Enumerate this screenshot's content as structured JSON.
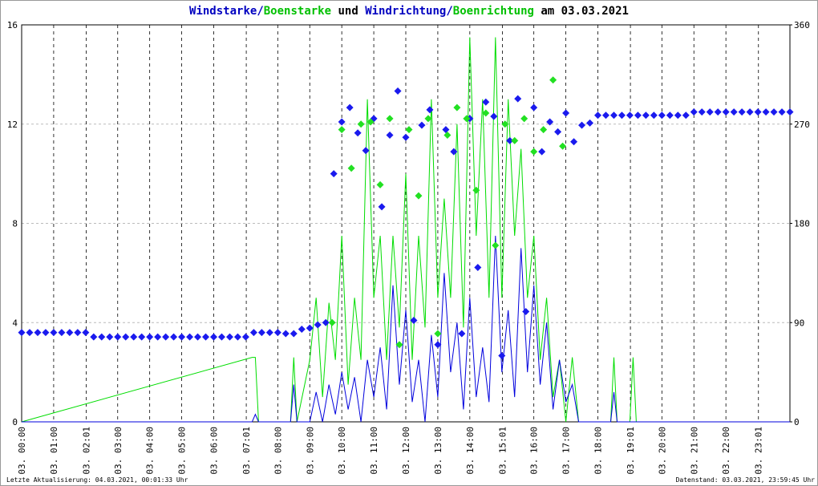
{
  "chart_data": {
    "type": "line",
    "title": [
      {
        "text": "Windstarke",
        "color": "#0000c0"
      },
      {
        "text": "/",
        "color": "#0000c0"
      },
      {
        "text": "Boenstarke",
        "color": "#00c000"
      },
      {
        "text": " und ",
        "color": "#000000"
      },
      {
        "text": "Windrichtung",
        "color": "#0000c0"
      },
      {
        "text": "/",
        "color": "#0000c0"
      },
      {
        "text": "Boenrichtung",
        "color": "#00c000"
      },
      {
        "text": " am 03.03.2021",
        "color": "#000000"
      }
    ],
    "footer_left": "Letzte Aktualisierung: 04.03.2021, 00:01:33 Uhr",
    "footer_right": "Datenstand: 03.03.2021, 23:59:45 Uhr",
    "xlim": [
      0,
      24
    ],
    "xticks": [
      {
        "value": 0,
        "label": "03. 00:00"
      },
      {
        "value": 1,
        "label": "03. 01:00"
      },
      {
        "value": 2.0167,
        "label": "03. 02:01"
      },
      {
        "value": 3,
        "label": "03. 03:00"
      },
      {
        "value": 4,
        "label": "03. 04:00"
      },
      {
        "value": 5,
        "label": "03. 05:00"
      },
      {
        "value": 6,
        "label": "03. 06:00"
      },
      {
        "value": 7.0167,
        "label": "03. 07:01"
      },
      {
        "value": 8,
        "label": "03. 08:00"
      },
      {
        "value": 9,
        "label": "03. 09:00"
      },
      {
        "value": 10,
        "label": "03. 10:00"
      },
      {
        "value": 11,
        "label": "03. 11:00"
      },
      {
        "value": 12,
        "label": "03. 12:00"
      },
      {
        "value": 13,
        "label": "03. 13:00"
      },
      {
        "value": 14,
        "label": "03. 14:00"
      },
      {
        "value": 15.0167,
        "label": "03. 15:01"
      },
      {
        "value": 16,
        "label": "03. 16:00"
      },
      {
        "value": 17,
        "label": "03. 17:00"
      },
      {
        "value": 18,
        "label": "03. 18:00"
      },
      {
        "value": 19.0167,
        "label": "03. 19:01"
      },
      {
        "value": 20,
        "label": "03. 20:00"
      },
      {
        "value": 21,
        "label": "03. 21:00"
      },
      {
        "value": 22,
        "label": "03. 22:00"
      },
      {
        "value": 23.0167,
        "label": "03. 23:01"
      }
    ],
    "ylim": [
      0,
      16
    ],
    "yticks": [
      0,
      4,
      8,
      12,
      16
    ],
    "y2lim": [
      0,
      360
    ],
    "y2ticks": [
      0,
      90,
      180,
      270,
      360
    ],
    "grid": true,
    "series": [
      {
        "name": "Boenstarke",
        "color": "#00dd00",
        "marker": "line",
        "x": [
          0,
          7.2,
          7.3,
          7.4,
          8.4,
          8.5,
          8.6,
          9,
          9.2,
          9.4,
          9.6,
          9.8,
          10,
          10.2,
          10.4,
          10.6,
          10.8,
          11,
          11.2,
          11.4,
          11.6,
          11.8,
          12,
          12.2,
          12.4,
          12.6,
          12.8,
          13,
          13.2,
          13.4,
          13.6,
          13.8,
          14,
          14.2,
          14.4,
          14.6,
          14.8,
          15,
          15.2,
          15.4,
          15.6,
          15.8,
          16,
          16.2,
          16.4,
          16.6,
          16.8,
          17,
          17.2,
          17.4,
          18.4,
          18.5,
          18.6,
          19,
          19.1,
          19.2,
          24
        ],
        "values": [
          0,
          2.6,
          2.6,
          0,
          0,
          2.6,
          0,
          2.5,
          5,
          1,
          4.8,
          2.5,
          7.5,
          1.5,
          5,
          2.5,
          13,
          5,
          7.5,
          2.5,
          7.5,
          3.8,
          10,
          2.5,
          7.5,
          3.8,
          13,
          5,
          9,
          5,
          12,
          3.8,
          15.5,
          7.5,
          13,
          5,
          15.5,
          5,
          13,
          7.5,
          11,
          5,
          7.5,
          2.5,
          5,
          1,
          2.5,
          0,
          2.6,
          0,
          0,
          2.6,
          0,
          0,
          2.6,
          0,
          0
        ]
      },
      {
        "name": "Windstarke",
        "color": "#0000dd",
        "marker": "line",
        "x": [
          0,
          7.2,
          7.3,
          7.4,
          8.4,
          8.5,
          8.6,
          9,
          9.2,
          9.4,
          9.6,
          9.8,
          10,
          10.2,
          10.4,
          10.6,
          10.8,
          11,
          11.2,
          11.4,
          11.6,
          11.8,
          12,
          12.2,
          12.4,
          12.6,
          12.8,
          13,
          13.2,
          13.4,
          13.6,
          13.8,
          14,
          14.2,
          14.4,
          14.6,
          14.8,
          15,
          15.2,
          15.4,
          15.6,
          15.8,
          16,
          16.2,
          16.4,
          16.6,
          16.8,
          17,
          17.2,
          17.4,
          18.4,
          18.5,
          18.6,
          24
        ],
        "values": [
          0,
          0,
          0.3,
          0,
          0,
          1.5,
          0,
          0,
          1.2,
          0,
          1.5,
          0.3,
          2,
          0.5,
          1.8,
          0,
          2.5,
          1,
          3,
          0.5,
          5.5,
          1.5,
          4.5,
          0.8,
          2.5,
          0,
          3.5,
          1,
          6,
          2,
          4,
          0.5,
          5,
          1,
          3,
          0.8,
          7.5,
          2,
          4.5,
          1,
          7,
          2,
          5.5,
          1.5,
          4,
          0.5,
          2.5,
          0.8,
          1.5,
          0,
          0,
          1.2,
          0,
          0
        ]
      },
      {
        "name": "Windrichtung",
        "color": "#1a1aee",
        "marker": "diamond",
        "axis": "y2",
        "x": [
          0,
          0.25,
          0.5,
          0.75,
          1,
          1.25,
          1.5,
          1.75,
          2,
          2.25,
          2.5,
          2.75,
          3,
          3.25,
          3.5,
          3.75,
          4,
          4.25,
          4.5,
          4.75,
          5,
          5.25,
          5.5,
          5.75,
          6,
          6.25,
          6.5,
          6.75,
          7,
          7.25,
          7.5,
          7.75,
          8,
          8.25,
          8.5,
          8.75,
          9,
          9.25,
          9.5,
          9.75,
          10,
          10.25,
          10.5,
          10.75,
          11,
          11.25,
          11.5,
          11.75,
          12,
          12.25,
          12.5,
          12.75,
          13,
          13.25,
          13.5,
          13.75,
          14,
          14.25,
          14.5,
          14.75,
          15,
          15.25,
          15.5,
          15.75,
          16,
          16.25,
          16.5,
          16.75,
          17,
          17.25,
          17.5,
          17.75,
          18,
          18.25,
          18.5,
          18.75,
          19,
          19.25,
          19.5,
          19.75,
          20,
          20.25,
          20.5,
          20.75,
          21,
          21.25,
          21.5,
          21.75,
          22,
          22.25,
          22.5,
          22.75,
          23,
          23.25,
          23.5,
          23.75,
          24
        ],
        "values": [
          81,
          81,
          81,
          81,
          81,
          81,
          81,
          81,
          81,
          77,
          77,
          77,
          77,
          77,
          77,
          77,
          77,
          77,
          77,
          77,
          77,
          77,
          77,
          77,
          77,
          77,
          77,
          77,
          77,
          81,
          81,
          81,
          81,
          80,
          80,
          84,
          85,
          88,
          90,
          225,
          272,
          285,
          262,
          246,
          275,
          195,
          260,
          300,
          258,
          92,
          269,
          283,
          70,
          265,
          245,
          80,
          275,
          140,
          290,
          277,
          60,
          255,
          293,
          100,
          285,
          245,
          272,
          263,
          280,
          254,
          269,
          271,
          278,
          278,
          278,
          278,
          278,
          278,
          278,
          278,
          278,
          278,
          278,
          278,
          281,
          281,
          281,
          281,
          281,
          281,
          281,
          281,
          281,
          281,
          281,
          281,
          281
        ]
      },
      {
        "name": "Boenrichtung",
        "color": "#22e022",
        "marker": "diamond",
        "axis": "y2",
        "x": [
          9.7,
          10,
          10.3,
          10.6,
          10.9,
          11.2,
          11.5,
          11.8,
          12.1,
          12.4,
          12.7,
          13,
          13.3,
          13.6,
          13.9,
          14.2,
          14.5,
          14.8,
          15.1,
          15.4,
          15.7,
          16,
          16.3,
          16.6,
          16.9
        ],
        "values": [
          90,
          265,
          230,
          270,
          272,
          215,
          275,
          70,
          265,
          205,
          275,
          80,
          260,
          285,
          275,
          210,
          280,
          160,
          270,
          255,
          275,
          245,
          265,
          310,
          250
        ]
      }
    ]
  }
}
